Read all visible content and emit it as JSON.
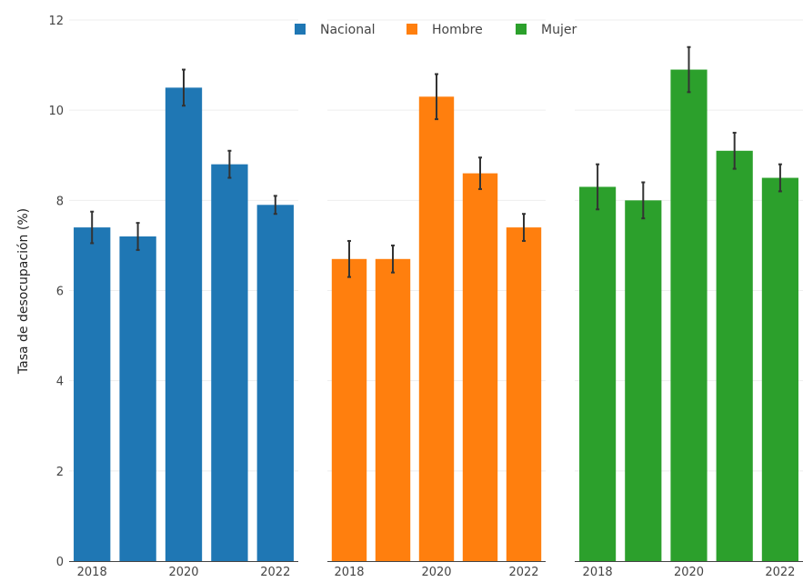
{
  "chart_data": {
    "type": "bar",
    "title": "",
    "ylabel": "Tasa de desocupación (%)",
    "ylim": [
      0,
      12
    ],
    "yticks": [
      0,
      2,
      4,
      6,
      8,
      10,
      12
    ],
    "x": [
      2018,
      2019,
      2020,
      2021,
      2022
    ],
    "xtick_labels": [
      "2018",
      "2020",
      "2022"
    ],
    "grid": true,
    "legend_position": "top",
    "series": [
      {
        "name": "Nacional",
        "color": "#1f77b4",
        "values": [
          7.4,
          7.2,
          10.5,
          8.8,
          7.9
        ],
        "errors": [
          0.35,
          0.3,
          0.4,
          0.3,
          0.2
        ]
      },
      {
        "name": "Hombre",
        "color": "#ff7f0e",
        "values": [
          6.7,
          6.7,
          10.3,
          8.6,
          7.4
        ],
        "errors": [
          0.4,
          0.3,
          0.5,
          0.35,
          0.3
        ]
      },
      {
        "name": "Mujer",
        "color": "#2ca02c",
        "values": [
          8.3,
          8.0,
          10.9,
          9.1,
          8.5
        ],
        "errors": [
          0.5,
          0.4,
          0.5,
          0.4,
          0.3
        ]
      }
    ]
  }
}
